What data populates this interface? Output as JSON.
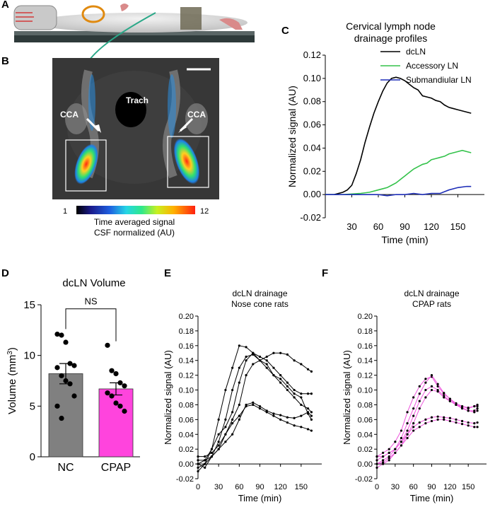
{
  "panels": {
    "a": "A",
    "b": "B",
    "c": "C",
    "d": "D",
    "e": "E",
    "f": "F"
  },
  "panel_b": {
    "labels": {
      "trach": "Trach",
      "cca_left": "CCA",
      "cca_right": "CCA"
    },
    "colorbar": {
      "min": "1",
      "max": "12",
      "label_line1": "Time averaged signal",
      "label_line2": "CSF normalized (AU)"
    }
  },
  "colors": {
    "dcLN": "#000000",
    "accessory": "#33c24a",
    "submandibular": "#1f2fb8",
    "cpap": "#ee55dd",
    "nc_bar": "#808080",
    "cpap_bar": "#ff44dd"
  },
  "chart_data": [
    {
      "id": "C",
      "type": "line",
      "title_line1": "Cervical lymph node",
      "title_line2": "drainage profiles",
      "xlabel": "Time (min)",
      "ylabel": "Normalized signal (AU)",
      "xlim": [
        0,
        180
      ],
      "ylim": [
        -0.02,
        0.12
      ],
      "xticks": [
        30,
        60,
        90,
        120,
        150
      ],
      "yticks": [
        -0.02,
        0.0,
        0.02,
        0.04,
        0.06,
        0.08,
        0.1,
        0.12
      ],
      "ytick_labels": [
        "-0.02",
        "0.00",
        "0.02",
        "0.04",
        "0.06",
        "0.08",
        "0.10",
        "0.12"
      ],
      "legend": "top-right",
      "series": [
        {
          "name": "dcLN",
          "x": [
            0,
            10,
            20,
            25,
            30,
            35,
            40,
            45,
            50,
            55,
            60,
            65,
            70,
            75,
            80,
            85,
            90,
            95,
            100,
            105,
            110,
            115,
            120,
            125,
            130,
            135,
            140,
            145,
            150,
            155,
            160,
            165
          ],
          "y": [
            0,
            0,
            0.002,
            0.004,
            0.008,
            0.018,
            0.03,
            0.045,
            0.058,
            0.07,
            0.08,
            0.089,
            0.096,
            0.1,
            0.101,
            0.1,
            0.098,
            0.095,
            0.092,
            0.09,
            0.085,
            0.084,
            0.083,
            0.081,
            0.08,
            0.077,
            0.075,
            0.074,
            0.073,
            0.072,
            0.071,
            0.07
          ]
        },
        {
          "name": "Accessory LN",
          "x": [
            0,
            20,
            40,
            50,
            60,
            65,
            70,
            75,
            80,
            85,
            90,
            95,
            100,
            105,
            110,
            115,
            120,
            125,
            130,
            135,
            140,
            145,
            150,
            155,
            160,
            165
          ],
          "y": [
            0,
            0,
            0.001,
            0.002,
            0.004,
            0.005,
            0.006,
            0.008,
            0.01,
            0.013,
            0.016,
            0.019,
            0.022,
            0.024,
            0.026,
            0.027,
            0.03,
            0.031,
            0.032,
            0.033,
            0.035,
            0.036,
            0.037,
            0.038,
            0.037,
            0.036
          ]
        },
        {
          "name": "Submandiular LN",
          "x": [
            0,
            40,
            60,
            70,
            80,
            90,
            100,
            110,
            120,
            130,
            140,
            150,
            160,
            165
          ],
          "y": [
            0,
            0,
            0,
            -0.001,
            0,
            0,
            0.001,
            0,
            0.001,
            0.001,
            0.004,
            0.006,
            0.007,
            0.007
          ]
        }
      ]
    },
    {
      "id": "D",
      "type": "bar",
      "title": "dcLN Volume",
      "ylabel": "Volume (mm",
      "ylabel_sup": "3",
      "ylabel_end": ")",
      "ylim": [
        0,
        15
      ],
      "yticks": [
        0,
        5,
        10,
        15
      ],
      "categories": [
        "NC",
        "CPAP"
      ],
      "values": [
        8.2,
        6.7
      ],
      "sem": [
        1.0,
        0.6
      ],
      "points": [
        [
          12.1,
          12.0,
          11.3,
          9.2,
          9.0,
          8.8,
          8.0,
          7.5,
          7.2,
          6.0,
          5.0,
          3.8
        ],
        [
          11.0,
          8.5,
          8.2,
          7.3,
          7.0,
          6.3,
          6.0,
          5.3,
          5.0,
          4.5
        ]
      ],
      "annotation": "NS"
    },
    {
      "id": "E",
      "type": "line",
      "title_line1": "dcLN drainage",
      "title_line2": "Nose cone rats",
      "xlabel": "Time (min)",
      "ylabel": "Normalized signal (AU)",
      "xlim": [
        0,
        180
      ],
      "ylim": [
        -0.02,
        0.2
      ],
      "xticks": [
        0,
        30,
        60,
        90,
        120,
        150
      ],
      "yticks": [
        -0.02,
        0.0,
        0.02,
        0.04,
        0.06,
        0.08,
        0.1,
        0.12,
        0.14,
        0.16,
        0.18,
        0.2
      ],
      "ytick_labels": [
        "-0.02",
        "0.00",
        "0.02",
        "0.04",
        "0.06",
        "0.08",
        "0.10",
        "0.12",
        "0.14",
        "0.16",
        "0.18",
        "0.20"
      ],
      "series": [
        {
          "x": [
            0,
            10,
            20,
            30,
            40,
            50,
            60,
            70,
            80,
            90,
            100,
            110,
            120,
            130,
            140,
            150,
            160,
            165
          ],
          "y": [
            0,
            0.005,
            0.02,
            0.06,
            0.1,
            0.13,
            0.16,
            0.158,
            0.15,
            0.14,
            0.13,
            0.12,
            0.11,
            0.1,
            0.09,
            0.08,
            0.075,
            0.07
          ]
        },
        {
          "x": [
            0,
            10,
            20,
            30,
            40,
            50,
            60,
            70,
            80,
            90,
            100,
            110,
            120,
            130,
            140,
            150,
            160,
            165
          ],
          "y": [
            -0.005,
            0,
            0.01,
            0.03,
            0.06,
            0.1,
            0.13,
            0.145,
            0.148,
            0.14,
            0.135,
            0.12,
            0.115,
            0.105,
            0.095,
            0.09,
            0.068,
            0.06
          ]
        },
        {
          "x": [
            0,
            10,
            20,
            30,
            40,
            50,
            60,
            70,
            80,
            90,
            100,
            110,
            120,
            130,
            140,
            150,
            160,
            165
          ],
          "y": [
            -0.01,
            0,
            0.02,
            0.04,
            0.05,
            0.07,
            0.11,
            0.14,
            0.15,
            0.145,
            0.14,
            0.13,
            0.12,
            0.11,
            0.1,
            0.095,
            0.095,
            0.095
          ]
        },
        {
          "x": [
            0,
            10,
            20,
            30,
            40,
            50,
            60,
            70,
            80,
            90,
            100,
            110,
            120,
            130,
            140,
            150,
            160,
            165
          ],
          "y": [
            0,
            -0.005,
            0.01,
            0.02,
            0.04,
            0.06,
            0.08,
            0.12,
            0.135,
            0.14,
            0.145,
            0.15,
            0.15,
            0.148,
            0.14,
            0.135,
            0.128,
            0.125
          ]
        },
        {
          "x": [
            0,
            10,
            20,
            30,
            40,
            50,
            60,
            70,
            80,
            90,
            100,
            110,
            120,
            130,
            140,
            150,
            160,
            165
          ],
          "y": [
            0.005,
            0.005,
            0.01,
            0.02,
            0.03,
            0.04,
            0.06,
            0.08,
            0.083,
            0.078,
            0.072,
            0.068,
            0.066,
            0.063,
            0.062,
            0.065,
            0.07,
            0.065
          ]
        },
        {
          "x": [
            0,
            10,
            20,
            30,
            40,
            50,
            60,
            70,
            80,
            90,
            100,
            110,
            120,
            130,
            140,
            150,
            160,
            165
          ],
          "y": [
            0.01,
            0.01,
            0.015,
            0.025,
            0.04,
            0.055,
            0.065,
            0.078,
            0.08,
            0.075,
            0.07,
            0.065,
            0.06,
            0.056,
            0.052,
            0.05,
            0.047,
            0.045
          ]
        }
      ]
    },
    {
      "id": "F",
      "type": "line",
      "title_line1": "dcLN drainage",
      "title_line2": "CPAP rats",
      "xlabel": "Time (min)",
      "ylabel": "Normalized signal (AU)",
      "xlim": [
        0,
        180
      ],
      "ylim": [
        -0.02,
        0.2
      ],
      "xticks": [
        0,
        30,
        60,
        90,
        120,
        150
      ],
      "yticks": [
        -0.02,
        0.0,
        0.02,
        0.04,
        0.06,
        0.08,
        0.1,
        0.12,
        0.14,
        0.16,
        0.18,
        0.2
      ],
      "ytick_labels": [
        "-0.02",
        "0.00",
        "0.02",
        "0.04",
        "0.06",
        "0.08",
        "0.10",
        "0.12",
        "0.14",
        "0.16",
        "0.18",
        "0.20"
      ],
      "series": [
        {
          "x": [
            0,
            10,
            20,
            30,
            40,
            50,
            60,
            70,
            80,
            90,
            100,
            110,
            120,
            130,
            140,
            150,
            160,
            165
          ],
          "y": [
            0.01,
            0.015,
            0.02,
            0.03,
            0.045,
            0.07,
            0.09,
            0.105,
            0.115,
            0.118,
            0.105,
            0.095,
            0.088,
            0.082,
            0.078,
            0.075,
            0.078,
            0.078
          ]
        },
        {
          "x": [
            0,
            10,
            20,
            30,
            40,
            50,
            60,
            70,
            80,
            90,
            100,
            110,
            120,
            130,
            140,
            150,
            160,
            165
          ],
          "y": [
            0.005,
            0.01,
            0.015,
            0.02,
            0.035,
            0.055,
            0.075,
            0.095,
            0.11,
            0.12,
            0.108,
            0.096,
            0.088,
            0.08,
            0.075,
            0.072,
            0.072,
            0.075
          ]
        },
        {
          "x": [
            0,
            10,
            20,
            30,
            40,
            50,
            60,
            70,
            80,
            90,
            100,
            110,
            120,
            130,
            140,
            150,
            160,
            165
          ],
          "y": [
            0,
            0.005,
            0.01,
            0.02,
            0.03,
            0.045,
            0.065,
            0.085,
            0.1,
            0.105,
            0.1,
            0.092,
            0.085,
            0.08,
            0.078,
            0.076,
            0.078,
            0.08
          ]
        },
        {
          "x": [
            0,
            10,
            20,
            30,
            40,
            50,
            60,
            70,
            80,
            90,
            100,
            110,
            120,
            130,
            140,
            150,
            160,
            165
          ],
          "y": [
            -0.005,
            0,
            0.005,
            0.015,
            0.025,
            0.04,
            0.055,
            0.075,
            0.09,
            0.1,
            0.098,
            0.09,
            0.085,
            0.08,
            0.076,
            0.072,
            0.07,
            0.072
          ]
        },
        {
          "x": [
            0,
            10,
            20,
            30,
            40,
            50,
            60,
            70,
            80,
            90,
            100,
            110,
            120,
            130,
            140,
            150,
            160,
            165
          ],
          "y": [
            0.01,
            0.01,
            0.015,
            0.02,
            0.03,
            0.04,
            0.05,
            0.056,
            0.06,
            0.063,
            0.064,
            0.063,
            0.062,
            0.06,
            0.058,
            0.056,
            0.055,
            0.056
          ]
        },
        {
          "x": [
            0,
            10,
            20,
            30,
            40,
            50,
            60,
            70,
            80,
            90,
            100,
            110,
            120,
            130,
            140,
            150,
            160,
            165
          ],
          "y": [
            0,
            0.002,
            0.008,
            0.015,
            0.025,
            0.035,
            0.045,
            0.05,
            0.055,
            0.058,
            0.06,
            0.06,
            0.058,
            0.056,
            0.054,
            0.052,
            0.05,
            0.05
          ]
        }
      ]
    }
  ]
}
